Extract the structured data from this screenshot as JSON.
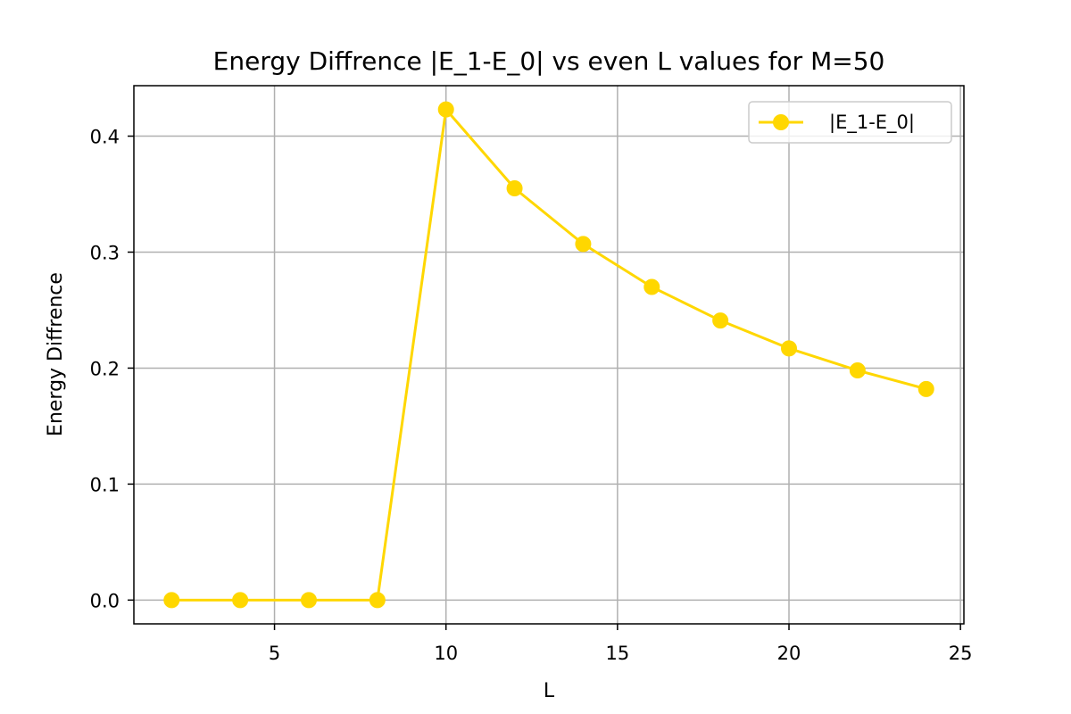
{
  "chart_data": {
    "type": "line",
    "title": "Energy Diffrence |E_1-E_0| vs even L values for M=50",
    "xlabel": "L",
    "ylabel": "Energy Diffrence",
    "xlim": [
      0.9,
      25.1
    ],
    "ylim": [
      -0.0205,
      0.4435
    ],
    "xticks": [
      5,
      10,
      15,
      20,
      25
    ],
    "yticks": [
      0.0,
      0.1,
      0.2,
      0.3,
      0.4
    ],
    "ytick_labels": [
      "0.0",
      "0.1",
      "0.2",
      "0.3",
      "0.4"
    ],
    "grid": true,
    "legend_position": "top-right",
    "series": [
      {
        "name": "|E_1-E_0|",
        "color": "#FFD700",
        "marker": "circle",
        "x": [
          2,
          4,
          6,
          8,
          10,
          12,
          14,
          16,
          18,
          20,
          22,
          24
        ],
        "y": [
          0.0,
          0.0,
          0.0,
          0.0,
          0.423,
          0.355,
          0.307,
          0.27,
          0.241,
          0.217,
          0.198,
          0.182
        ]
      }
    ]
  }
}
